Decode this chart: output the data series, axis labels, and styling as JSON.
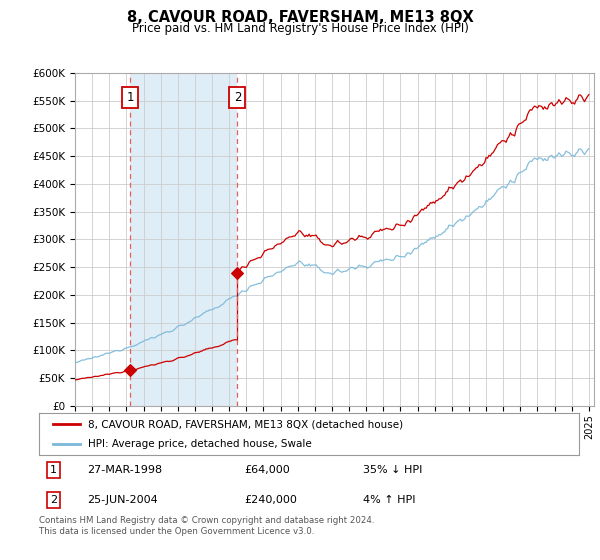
{
  "title": "8, CAVOUR ROAD, FAVERSHAM, ME13 8QX",
  "subtitle": "Price paid vs. HM Land Registry's House Price Index (HPI)",
  "x_start_year": 1995,
  "x_end_year": 2025,
  "y_min": 0,
  "y_max": 600000,
  "y_ticks": [
    0,
    50000,
    100000,
    150000,
    200000,
    250000,
    300000,
    350000,
    400000,
    450000,
    500000,
    550000,
    600000
  ],
  "y_tick_labels": [
    "£0",
    "£50K",
    "£100K",
    "£150K",
    "£200K",
    "£250K",
    "£300K",
    "£350K",
    "£400K",
    "£450K",
    "£500K",
    "£550K",
    "£600K"
  ],
  "sale1_year": 1998.23,
  "sale1_price": 64000,
  "sale1_label": "1",
  "sale1_date": "27-MAR-1998",
  "sale1_hpi": "35% ↓ HPI",
  "sale2_year": 2004.48,
  "sale2_price": 240000,
  "sale2_label": "2",
  "sale2_date": "25-JUN-2004",
  "sale2_hpi": "4% ↑ HPI",
  "legend_line1": "8, CAVOUR ROAD, FAVERSHAM, ME13 8QX (detached house)",
  "legend_line2": "HPI: Average price, detached house, Swale",
  "footer": "Contains HM Land Registry data © Crown copyright and database right 2024.\nThis data is licensed under the Open Government Licence v3.0.",
  "hpi_color": "#7ab8d9",
  "price_color": "#cc0000",
  "bg_color": "#ffffff",
  "plot_bg_color": "#ffffff",
  "grid_color": "#cccccc",
  "sale_marker_color": "#cc0000",
  "sale_vline_color": "#e06060",
  "highlight_bg": "#daeaf5"
}
